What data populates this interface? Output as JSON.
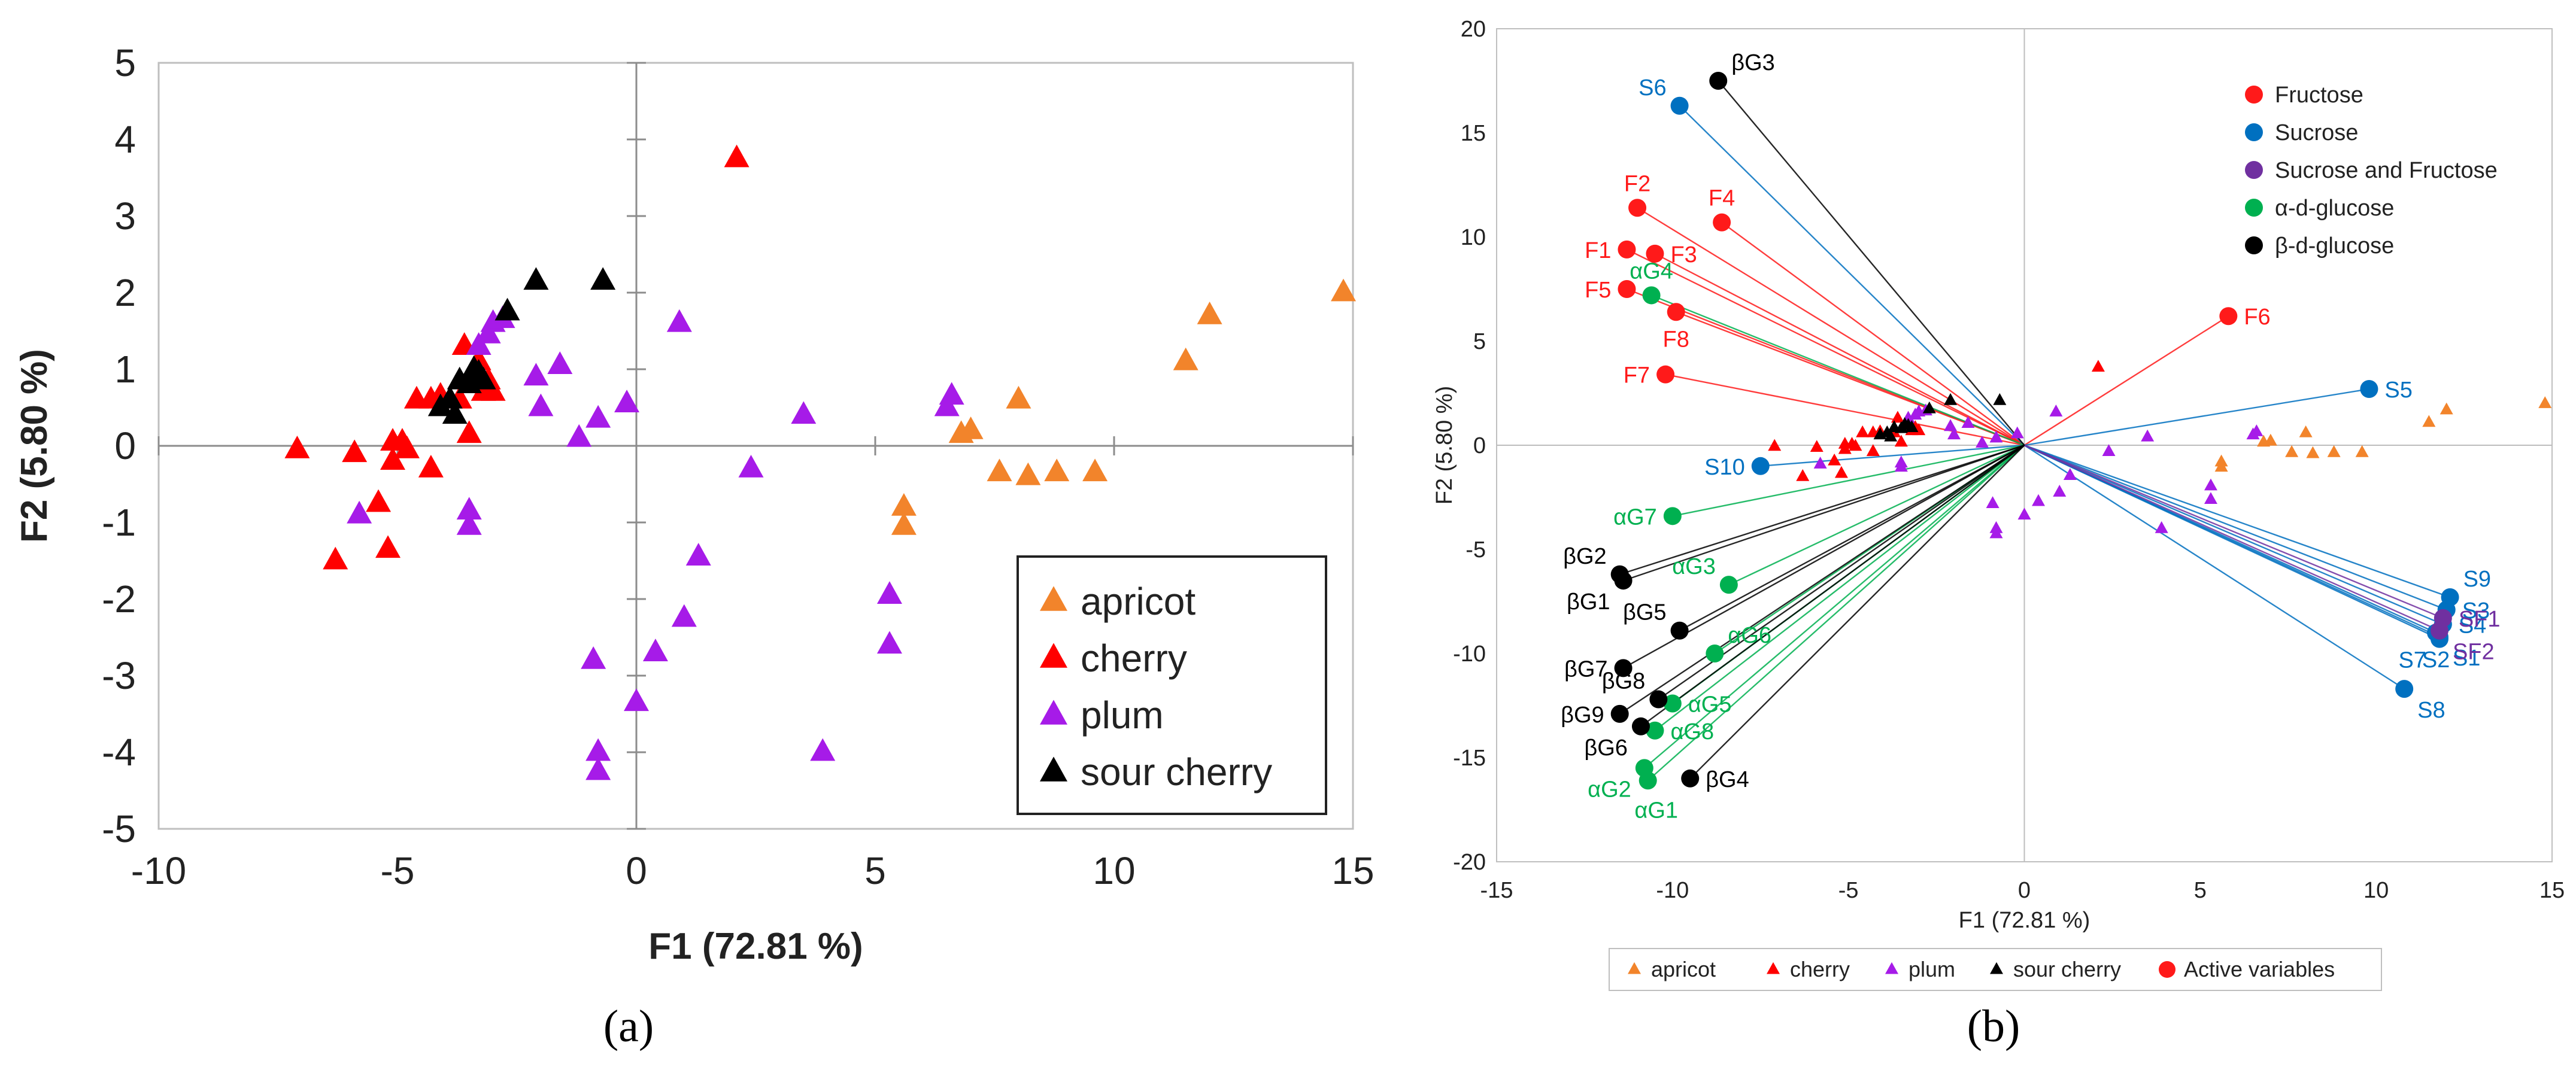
{
  "colors": {
    "apricot": "#f2842b",
    "cherry": "#ff0000",
    "plum": "#a61be8",
    "sour_cherry": "#000000",
    "fructose": "#ff1a1a",
    "sucrose": "#0070c0",
    "sucrose_fructose": "#7030a0",
    "alpha_glucose": "#00b050",
    "beta_glucose": "#000000"
  },
  "panel_a_label": "(a)",
  "panel_b_label": "(b)",
  "chart_data": [
    {
      "type": "scatter",
      "panel": "a",
      "title": "",
      "xlabel": "F1 (72.81 %)",
      "ylabel": "F2 (5.80 %)",
      "xlim": [
        -10,
        15
      ],
      "ylim": [
        -5,
        5
      ],
      "xticks": [
        -10,
        -5,
        0,
        5,
        10,
        15
      ],
      "yticks": [
        -5,
        -4,
        -3,
        -2,
        -1,
        0,
        1,
        2,
        3,
        4,
        5
      ],
      "legend_position": "bottom-right",
      "series": [
        {
          "key": "apricot",
          "name": "apricot",
          "points": [
            [
              14.8,
              2.0
            ],
            [
              12.0,
              1.7
            ],
            [
              11.5,
              1.1
            ],
            [
              8.0,
              0.6
            ],
            [
              7.0,
              0.2
            ],
            [
              6.8,
              0.15
            ],
            [
              7.6,
              -0.35
            ],
            [
              8.2,
              -0.4
            ],
            [
              8.8,
              -0.35
            ],
            [
              9.6,
              -0.35
            ],
            [
              5.6,
              -0.8
            ],
            [
              5.6,
              -1.05
            ]
          ]
        },
        {
          "key": "cherry",
          "name": "cherry",
          "points": [
            [
              -7.1,
              -0.05
            ],
            [
              -6.3,
              -1.5
            ],
            [
              -5.9,
              -0.1
            ],
            [
              -5.4,
              -0.75
            ],
            [
              -5.2,
              -1.35
            ],
            [
              -5.1,
              0.05
            ],
            [
              -5.1,
              -0.2
            ],
            [
              -4.9,
              0.05
            ],
            [
              -4.8,
              -0.05
            ],
            [
              -4.6,
              0.6
            ],
            [
              -4.3,
              0.6
            ],
            [
              -4.3,
              -0.3
            ],
            [
              -4.1,
              0.65
            ],
            [
              -3.7,
              0.6
            ],
            [
              -3.6,
              1.3
            ],
            [
              -3.5,
              0.15
            ],
            [
              -3.3,
              1.1
            ],
            [
              -3.2,
              0.7
            ],
            [
              -3.1,
              0.85
            ],
            [
              -3.0,
              0.7
            ],
            [
              2.1,
              3.75
            ]
          ]
        },
        {
          "key": "plum",
          "name": "plum",
          "points": [
            [
              -5.8,
              -0.9
            ],
            [
              -3.5,
              -0.85
            ],
            [
              -3.5,
              -1.05
            ],
            [
              -3.3,
              1.3
            ],
            [
              -3.1,
              1.45
            ],
            [
              -3.0,
              1.6
            ],
            [
              -2.8,
              1.65
            ],
            [
              -2.1,
              0.9
            ],
            [
              -2.0,
              0.5
            ],
            [
              -1.6,
              1.05
            ],
            [
              -1.2,
              0.1
            ],
            [
              -0.8,
              0.35
            ],
            [
              -0.2,
              0.55
            ],
            [
              0.9,
              1.6
            ],
            [
              2.4,
              -0.3
            ],
            [
              3.5,
              0.4
            ],
            [
              6.5,
              0.5
            ],
            [
              6.6,
              0.65
            ],
            [
              5.3,
              -1.95
            ],
            [
              5.3,
              -2.6
            ],
            [
              1.3,
              -1.45
            ],
            [
              1.0,
              -2.25
            ],
            [
              0.4,
              -2.7
            ],
            [
              -0.9,
              -2.8
            ],
            [
              0.0,
              -3.35
            ],
            [
              -0.8,
              -4.0
            ],
            [
              -0.8,
              -4.25
            ],
            [
              3.9,
              -4.0
            ]
          ]
        },
        {
          "key": "sour_cherry",
          "name": "sour cherry",
          "points": [
            [
              -4.1,
              0.5
            ],
            [
              -3.9,
              0.6
            ],
            [
              -3.8,
              0.4
            ],
            [
              -3.7,
              0.85
            ],
            [
              -3.5,
              0.8
            ],
            [
              -3.4,
              1.0
            ],
            [
              -3.3,
              0.95
            ],
            [
              -3.2,
              0.85
            ],
            [
              -2.7,
              1.75
            ],
            [
              -2.1,
              2.15
            ],
            [
              -0.7,
              2.15
            ]
          ]
        }
      ]
    },
    {
      "type": "scatter",
      "subtype": "biplot",
      "panel": "b",
      "title": "",
      "xlabel": "F1 (72.81 %)",
      "ylabel": "F2 (5.80 %)",
      "xlim": [
        -15,
        15
      ],
      "ylim": [
        -20,
        20
      ],
      "xticks": [
        -15,
        -10,
        -5,
        0,
        5,
        10,
        15
      ],
      "yticks": [
        -20,
        -15,
        -10,
        -5,
        0,
        5,
        10,
        15,
        20
      ],
      "legend_position": "top-right",
      "variable_legend": [
        {
          "key": "fructose",
          "label": "Fructose"
        },
        {
          "key": "sucrose",
          "label": "Sucrose"
        },
        {
          "key": "sucrose_fructose",
          "label": "Sucrose and Fructose"
        },
        {
          "key": "alpha_glucose",
          "label": "α-d-glucose"
        },
        {
          "key": "beta_glucose",
          "label": "β-d-glucose"
        }
      ],
      "bottom_legend": [
        {
          "key": "apricot",
          "label": "apricot",
          "marker": "triangle"
        },
        {
          "key": "cherry",
          "label": "cherry",
          "marker": "triangle"
        },
        {
          "key": "plum",
          "label": "plum",
          "marker": "triangle"
        },
        {
          "key": "sour_cherry",
          "label": "sour cherry",
          "marker": "triangle"
        },
        {
          "key": "fructose",
          "label": "Active variables",
          "marker": "circle"
        }
      ],
      "observations": [
        {
          "key": "apricot",
          "points": [
            [
              14.8,
              2.0
            ],
            [
              12.0,
              1.7
            ],
            [
              11.5,
              1.1
            ],
            [
              8.0,
              0.6
            ],
            [
              7.0,
              0.2
            ],
            [
              6.8,
              0.15
            ],
            [
              7.6,
              -0.35
            ],
            [
              8.2,
              -0.4
            ],
            [
              8.8,
              -0.35
            ],
            [
              9.6,
              -0.35
            ],
            [
              5.6,
              -0.8
            ],
            [
              5.6,
              -1.05
            ]
          ]
        },
        {
          "key": "cherry",
          "points": [
            [
              -7.1,
              -0.05
            ],
            [
              -6.3,
              -1.5
            ],
            [
              -5.9,
              -0.1
            ],
            [
              -5.4,
              -0.75
            ],
            [
              -5.2,
              -1.35
            ],
            [
              -5.1,
              0.05
            ],
            [
              -5.1,
              -0.2
            ],
            [
              -4.9,
              0.05
            ],
            [
              -4.8,
              -0.05
            ],
            [
              -4.6,
              0.6
            ],
            [
              -4.3,
              0.6
            ],
            [
              -4.3,
              -0.3
            ],
            [
              -4.1,
              0.65
            ],
            [
              -3.7,
              0.6
            ],
            [
              -3.6,
              1.3
            ],
            [
              -3.5,
              0.15
            ],
            [
              -3.3,
              1.1
            ],
            [
              -3.2,
              0.7
            ],
            [
              -3.1,
              0.85
            ],
            [
              -3.0,
              0.7
            ],
            [
              2.1,
              3.75
            ]
          ]
        },
        {
          "key": "plum",
          "points": [
            [
              -5.8,
              -0.9
            ],
            [
              -3.5,
              -0.85
            ],
            [
              -3.5,
              -1.05
            ],
            [
              -3.3,
              1.3
            ],
            [
              -3.1,
              1.45
            ],
            [
              -3.0,
              1.6
            ],
            [
              -2.8,
              1.65
            ],
            [
              -2.1,
              0.9
            ],
            [
              -2.0,
              0.5
            ],
            [
              -1.6,
              1.05
            ],
            [
              -1.2,
              0.1
            ],
            [
              -0.8,
              0.35
            ],
            [
              -0.2,
              0.55
            ],
            [
              0.9,
              1.6
            ],
            [
              2.4,
              -0.3
            ],
            [
              3.5,
              0.4
            ],
            [
              6.5,
              0.5
            ],
            [
              6.6,
              0.65
            ],
            [
              5.3,
              -1.95
            ],
            [
              5.3,
              -2.6
            ],
            [
              1.3,
              -1.45
            ],
            [
              1.0,
              -2.25
            ],
            [
              0.4,
              -2.7
            ],
            [
              -0.9,
              -2.8
            ],
            [
              0.0,
              -3.35
            ],
            [
              -0.8,
              -4.0
            ],
            [
              -0.8,
              -4.25
            ],
            [
              3.9,
              -4.0
            ]
          ]
        },
        {
          "key": "sour_cherry",
          "points": [
            [
              -4.1,
              0.5
            ],
            [
              -3.9,
              0.6
            ],
            [
              -3.8,
              0.4
            ],
            [
              -3.7,
              0.85
            ],
            [
              -3.5,
              0.8
            ],
            [
              -3.4,
              1.0
            ],
            [
              -3.3,
              0.95
            ],
            [
              -3.2,
              0.85
            ],
            [
              -2.7,
              1.75
            ],
            [
              -2.1,
              2.15
            ],
            [
              -0.7,
              2.15
            ]
          ]
        }
      ],
      "variables": [
        {
          "name": "F1",
          "group": "fructose",
          "x": -11.3,
          "y": 9.4,
          "label_side": "left"
        },
        {
          "name": "F2",
          "group": "fructose",
          "x": -11.0,
          "y": 11.4,
          "label_side": "above"
        },
        {
          "name": "F3",
          "group": "fructose",
          "x": -10.5,
          "y": 9.2,
          "label_side": "right"
        },
        {
          "name": "F4",
          "group": "fructose",
          "x": -8.6,
          "y": 10.7,
          "label_side": "above"
        },
        {
          "name": "F5",
          "group": "fructose",
          "x": -11.3,
          "y": 7.5,
          "label_side": "left"
        },
        {
          "name": "F6",
          "group": "fructose",
          "x": 5.8,
          "y": 6.2,
          "label_side": "right"
        },
        {
          "name": "F7",
          "group": "fructose",
          "x": -10.2,
          "y": 3.4,
          "label_side": "left"
        },
        {
          "name": "F8",
          "group": "fructose",
          "x": -9.9,
          "y": 6.4,
          "label_side": "below"
        },
        {
          "name": "S1",
          "group": "sucrose",
          "x": 11.8,
          "y": -9.2,
          "label_side": "right-below"
        },
        {
          "name": "S2",
          "group": "sucrose",
          "x": 11.7,
          "y": -9.0,
          "label_side": "below"
        },
        {
          "name": "S3",
          "group": "sucrose",
          "x": 12.0,
          "y": -7.9,
          "label_side": "right"
        },
        {
          "name": "S4",
          "group": "sucrose",
          "x": 11.9,
          "y": -8.6,
          "label_side": "right"
        },
        {
          "name": "S5",
          "group": "sucrose",
          "x": 9.8,
          "y": 2.7,
          "label_side": "right"
        },
        {
          "name": "S6",
          "group": "sucrose",
          "x": -9.8,
          "y": 16.3,
          "label_side": "left-above"
        },
        {
          "name": "S7",
          "group": "sucrose",
          "x": 11.8,
          "y": -9.3,
          "label_side": "left-below"
        },
        {
          "name": "S8",
          "group": "sucrose",
          "x": 10.8,
          "y": -11.7,
          "label_side": "right-below"
        },
        {
          "name": "S9",
          "group": "sucrose",
          "x": 12.1,
          "y": -7.3,
          "label_side": "right-above"
        },
        {
          "name": "S10",
          "group": "sucrose",
          "x": -7.5,
          "y": -1.0,
          "label_side": "left"
        },
        {
          "name": "SF1",
          "group": "sucrose_fructose",
          "x": 11.9,
          "y": -8.3,
          "label_side": "right"
        },
        {
          "name": "SF2",
          "group": "sucrose_fructose",
          "x": 11.8,
          "y": -8.9,
          "label_side": "right-below"
        },
        {
          "name": "αG1",
          "group": "alpha_glucose",
          "x": -10.7,
          "y": -16.1,
          "label_side": "below-right"
        },
        {
          "name": "αG2",
          "group": "alpha_glucose",
          "x": -10.8,
          "y": -15.5,
          "label_side": "left-below"
        },
        {
          "name": "αG3",
          "group": "alpha_glucose",
          "x": -8.4,
          "y": -6.7,
          "label_side": "left-above"
        },
        {
          "name": "αG4",
          "group": "alpha_glucose",
          "x": -10.6,
          "y": 7.2,
          "label_side": "above"
        },
        {
          "name": "αG5",
          "group": "alpha_glucose",
          "x": -10.0,
          "y": -12.4,
          "label_side": "right"
        },
        {
          "name": "αG6",
          "group": "alpha_glucose",
          "x": -8.8,
          "y": -10.0,
          "label_side": "right-above"
        },
        {
          "name": "αG7",
          "group": "alpha_glucose",
          "x": -10.0,
          "y": -3.4,
          "label_side": "left"
        },
        {
          "name": "αG8",
          "group": "alpha_glucose",
          "x": -10.5,
          "y": -13.7,
          "label_side": "right"
        },
        {
          "name": "βG1",
          "group": "beta_glucose",
          "x": -11.4,
          "y": -6.5,
          "label_side": "left-below"
        },
        {
          "name": "βG2",
          "group": "beta_glucose",
          "x": -11.5,
          "y": -6.2,
          "label_side": "left-above"
        },
        {
          "name": "βG3",
          "group": "beta_glucose",
          "x": -8.7,
          "y": 17.5,
          "label_side": "right-above"
        },
        {
          "name": "βG4",
          "group": "beta_glucose",
          "x": -9.5,
          "y": -16.0,
          "label_side": "right"
        },
        {
          "name": "βG5",
          "group": "beta_glucose",
          "x": -9.8,
          "y": -8.9,
          "label_side": "left-above"
        },
        {
          "name": "βG6",
          "group": "beta_glucose",
          "x": -10.9,
          "y": -13.5,
          "label_side": "left-below"
        },
        {
          "name": "βG7",
          "group": "beta_glucose",
          "x": -11.4,
          "y": -10.7,
          "label_side": "left"
        },
        {
          "name": "βG8",
          "group": "beta_glucose",
          "x": -10.4,
          "y": -12.2,
          "label_side": "left-above"
        },
        {
          "name": "βG9",
          "group": "beta_glucose",
          "x": -11.5,
          "y": -12.9,
          "label_side": "left"
        }
      ]
    }
  ]
}
